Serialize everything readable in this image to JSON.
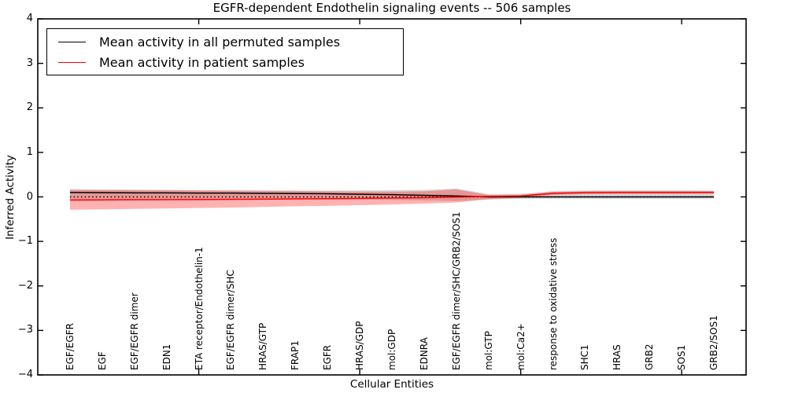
{
  "figure": {
    "title": "EGFR-dependent Endothelin signaling events -- 506 samples",
    "xlabel": "Cellular Entities",
    "ylabel": "Inferred Activity"
  },
  "legend": {
    "items": [
      {
        "label": "Mean activity in all permuted samples",
        "color": "#000000"
      },
      {
        "label": "Mean activity in patient samples",
        "color": "#ff0000"
      }
    ],
    "position": "upper left"
  },
  "chart_data": {
    "type": "line",
    "title": "EGFR-dependent Endothelin signaling events -- 506 samples",
    "xlabel": "Cellular Entities",
    "ylabel": "Inferred Activity",
    "ylim": [
      -4,
      4
    ],
    "xlim": [
      0,
      22
    ],
    "grid": false,
    "legend_position": "upper left",
    "yticks": [
      4,
      3,
      2,
      1,
      0,
      -1,
      -2,
      -3,
      -4
    ],
    "ytick_labels": [
      "4",
      "3",
      "2",
      "1",
      "0",
      "−1",
      "−2",
      "−3",
      "−4"
    ],
    "xtick_positions": [
      5,
      10,
      15,
      20
    ],
    "categories": [
      "EGF/EGFR",
      "EGF",
      "EGF/EGFR dimer",
      "EDN1",
      "ETA receptor/Endothelin-1",
      "EGF/EGFR dimer/SHC",
      "HRAS/GTP",
      "FRAP1",
      "EGFR",
      "HRAS/GDP",
      "mol:GDP",
      "EDNRA",
      "EGF/EGFR dimer/SHC/GRB2/SOS1",
      "mol:GTP",
      "mol:Ca2+",
      "response to oxidative stress",
      "SHC1",
      "HRAS",
      "GRB2",
      "SOS1",
      "GRB2/SOS1"
    ],
    "zero_line": {
      "y": 0,
      "style": "dotted",
      "color": "#000000"
    },
    "series": [
      {
        "name": "Mean activity in all permuted samples",
        "color": "#000000",
        "values": [
          0.1,
          0.095,
          0.09,
          0.09,
          0.085,
          0.085,
          0.08,
          0.075,
          0.07,
          0.06,
          0.05,
          0.035,
          0.02,
          0.0,
          0.0,
          0.0,
          0.0,
          0.0,
          0.0,
          0.0,
          0.0
        ]
      },
      {
        "name": "Mean activity in patient samples",
        "color": "#ff0000",
        "values": [
          -0.07,
          -0.068,
          -0.065,
          -0.062,
          -0.06,
          -0.055,
          -0.05,
          -0.045,
          -0.04,
          -0.033,
          -0.025,
          -0.018,
          -0.005,
          0.01,
          0.02,
          0.08,
          0.095,
          0.1,
          0.1,
          0.1,
          0.1
        ]
      }
    ],
    "bands": [
      {
        "name": "permuted-std-band",
        "color": "rgba(130,130,130,0.30)",
        "upper": [
          0.175,
          0.17,
          0.165,
          0.16,
          0.155,
          0.152,
          0.148,
          0.145,
          0.142,
          0.145,
          0.15,
          0.16,
          0.19,
          0.065,
          0.062,
          0.13,
          0.142,
          0.148,
          0.148,
          0.148,
          0.14
        ],
        "lower": [
          -0.06,
          -0.058,
          -0.056,
          -0.054,
          -0.052,
          -0.05,
          -0.05,
          -0.05,
          -0.055,
          -0.06,
          -0.07,
          -0.08,
          -0.095,
          -0.06,
          -0.045,
          -0.04,
          -0.042,
          -0.045,
          -0.045,
          -0.045,
          -0.04
        ]
      },
      {
        "name": "patient-std-band",
        "color": "rgba(255,0,0,0.30)",
        "upper": [
          0.16,
          0.155,
          0.15,
          0.147,
          0.143,
          0.14,
          0.135,
          0.13,
          0.125,
          0.122,
          0.12,
          0.125,
          0.17,
          0.045,
          0.05,
          0.115,
          0.125,
          0.13,
          0.13,
          0.13,
          0.13
        ],
        "lower": [
          -0.29,
          -0.28,
          -0.27,
          -0.26,
          -0.25,
          -0.24,
          -0.225,
          -0.21,
          -0.2,
          -0.185,
          -0.17,
          -0.15,
          -0.125,
          -0.05,
          -0.02,
          0.045,
          0.06,
          0.065,
          0.065,
          0.065,
          0.07
        ]
      }
    ]
  }
}
